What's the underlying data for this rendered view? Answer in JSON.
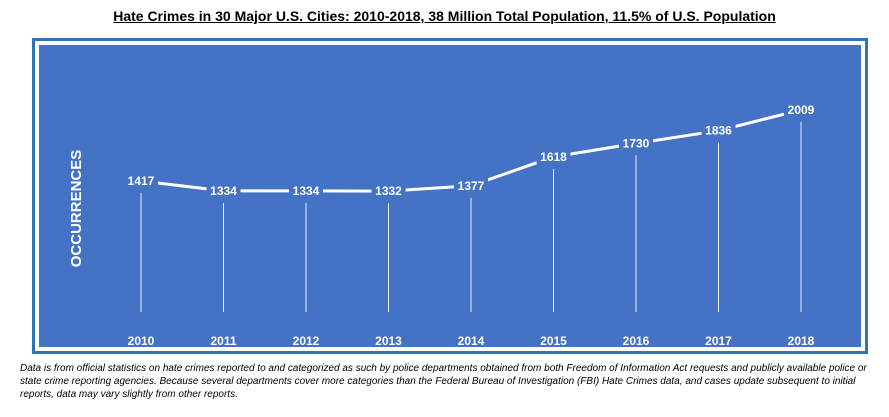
{
  "title": "Hate Crimes in 30 Major U.S. Cities: 2010-2018, 38 Million Total Population, 11.5% of U.S. Population",
  "footnote": "Data is from official statistics on hate crimes reported to and categorized as such by police departments obtained from both Freedom of Information Act requests and publicly available police or state crime reporting agencies. Because several departments cover more categories than the Federal Bureau of Investigation (FBI) Hate Crimes data, and cases update subsequent to initial reports, data may vary slightly from other reports.",
  "colors": {
    "plot_background": "#4472c4",
    "frame_border": "#2e75b6",
    "line": "#ffffff",
    "text": "#ffffff"
  },
  "chart_data": {
    "type": "line",
    "title": "Hate Crimes in 30 Major U.S. Cities: 2010-2018, 38 Million Total Population, 11.5% of U.S. Population",
    "xlabel": "",
    "ylabel": "OCCURRENCES",
    "categories": [
      "2010",
      "2011",
      "2012",
      "2013",
      "2014",
      "2015",
      "2016",
      "2017",
      "2018"
    ],
    "series": [
      {
        "values": [
          1417,
          1334,
          1334,
          1332,
          1377,
          1618,
          1730,
          1836,
          2009
        ]
      }
    ],
    "data_labels": true,
    "drop_lines": true,
    "grid": false,
    "legend": "none"
  }
}
